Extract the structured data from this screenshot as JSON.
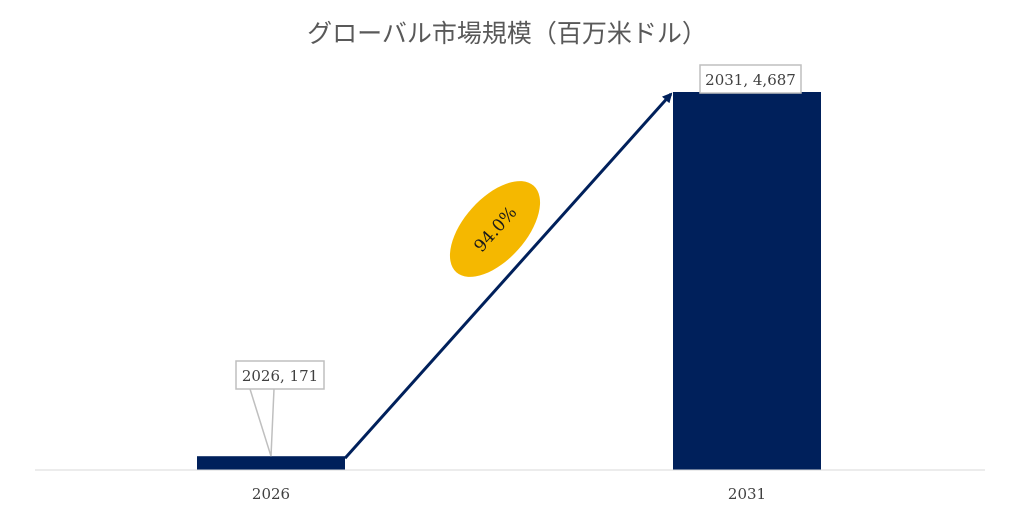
{
  "chart_data": {
    "type": "bar",
    "title": "グローバル市場規模（百万米ドル）",
    "xlabel": "",
    "ylabel": "",
    "categories": [
      "2026",
      "2031"
    ],
    "values": [
      171,
      4687
    ],
    "data_labels": [
      "2026, 171",
      "2031, 4,687"
    ],
    "ylim": [
      0,
      4687
    ],
    "grid": false,
    "legend": "none",
    "annotation": {
      "text": "94.0%",
      "kind": "growth-arrow"
    },
    "colors": {
      "bar": "#00205b",
      "arrow": "#00205b",
      "annotation_fill": "#f5b800",
      "label_border": "#bfbfbf",
      "axis": "#d9d9d9"
    }
  }
}
